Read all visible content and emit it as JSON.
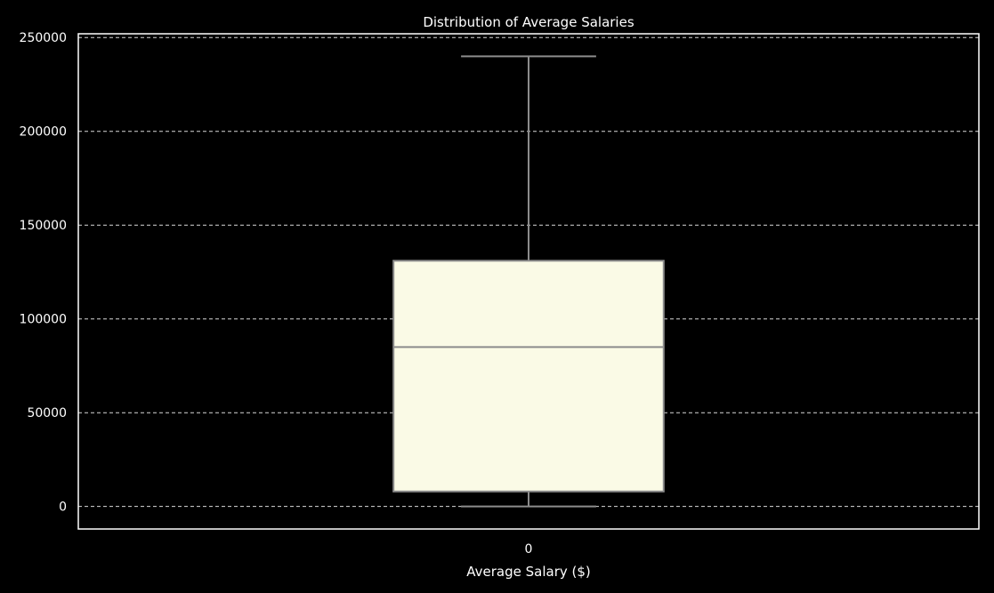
{
  "chart_data": {
    "type": "box",
    "title": "Distribution of Average Salaries",
    "xlabel": "Average Salary ($)",
    "ylabel": "",
    "categories": [
      "0"
    ],
    "series": [
      {
        "whisker_low": 0,
        "q1": 8000,
        "median": 85000,
        "q3": 131000,
        "whisker_high": 240000
      }
    ],
    "ylim": [
      -12000,
      252000
    ],
    "yticks": [
      0,
      50000,
      100000,
      150000,
      200000,
      250000
    ],
    "ytick_labels": [
      "0",
      "50000",
      "100000",
      "150000",
      "200000",
      "250000"
    ],
    "grid": true,
    "colors": {
      "background": "#000000",
      "box_fill": "#fafae6",
      "box_edge": "#8c8c8c",
      "grid": "#d9d9d9",
      "frame": "#ffffff",
      "text": "#ffffff"
    }
  }
}
